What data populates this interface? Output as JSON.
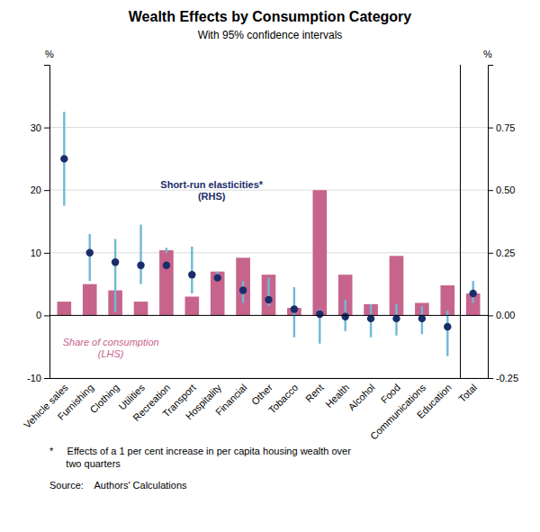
{
  "chart_data": {
    "type": "bar",
    "title": "Wealth Effects by Consumption Category",
    "subtitle": "With 95% confidence intervals",
    "categories": [
      "Vehicle sales",
      "Furnishing",
      "Clothing",
      "Utilities",
      "Recreation",
      "Transport",
      "Hospitality",
      "Financial",
      "Other",
      "Tobacco",
      "Rent",
      "Health",
      "Alcohol",
      "Food",
      "Communications",
      "Education",
      "Total"
    ],
    "series": [
      {
        "type": "bar",
        "color": "#c7648c",
        "values": [
          2.2,
          5.0,
          4.0,
          2.2,
          10.4,
          3.0,
          7.0,
          9.2,
          6.5,
          1.2,
          20.0,
          6.5,
          1.8,
          9.5,
          2.0,
          4.8,
          3.5
        ]
      },
      {
        "type": "interval",
        "axis": "y2",
        "color": "#6fb8d8",
        "ci_lower": [
          0.4375,
          0.1375,
          0.0125,
          0.125,
          0.25,
          0.0875,
          0.1375,
          0.05,
          0.0375,
          -0.0875,
          -0.1125,
          -0.0625,
          -0.0875,
          -0.08,
          -0.075,
          -0.1625,
          0.05
        ],
        "ci_upper": [
          0.8125,
          0.325,
          0.305,
          0.3625,
          0.27,
          0.275,
          0.175,
          0.1375,
          0.15,
          0.1125,
          0.025,
          0.0625,
          0.045,
          0.045,
          0.0375,
          0.02,
          0.1375
        ]
      },
      {
        "type": "scatter",
        "axis": "y2",
        "color": "#1a2d6b",
        "values": [
          0.625,
          0.25,
          0.2125,
          0.2,
          0.2,
          0.1625,
          0.15,
          0.1,
          0.0625,
          0.025,
          0.005,
          -0.005,
          -0.0125,
          -0.0125,
          -0.0125,
          -0.045,
          0.0875
        ]
      }
    ],
    "ylim": [
      -10,
      40
    ],
    "yticks": [
      -10,
      0,
      10,
      20,
      30
    ],
    "y2lim": [
      -0.25,
      1.0
    ],
    "y2ticks": [
      -0.25,
      {
        "value": 0.0,
        "label": "0.00"
      },
      0.25,
      {
        "value": 0.5,
        "label": "0.50"
      },
      0.75
    ],
    "ylabel": "%",
    "y2label": "%",
    "grid": true,
    "annotations": [
      "Short-run elasticities*\n(RHS)",
      "Share of consumption\n(LHS)"
    ],
    "footnotes": [
      "*     Effects of a 1 per cent increase in per capita housing wealth over\n      two quarters",
      "Source:    Authors' Calculations"
    ]
  }
}
